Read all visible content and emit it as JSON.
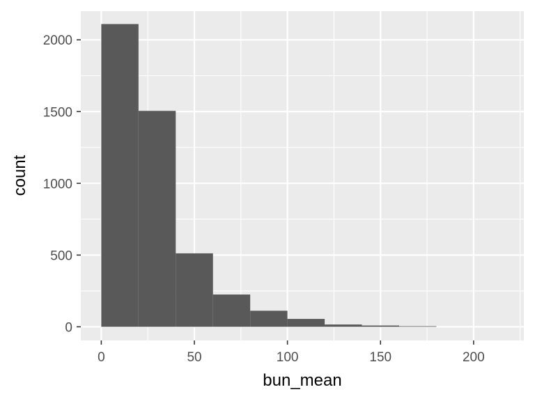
{
  "chart_data": {
    "type": "bar",
    "subtype": "histogram",
    "title": "",
    "xlabel": "bun_mean",
    "ylabel": "count",
    "bins": [
      {
        "start": 0,
        "end": 20,
        "count": 2110
      },
      {
        "start": 20,
        "end": 40,
        "count": 1505
      },
      {
        "start": 40,
        "end": 60,
        "count": 512
      },
      {
        "start": 60,
        "end": 80,
        "count": 225
      },
      {
        "start": 80,
        "end": 100,
        "count": 112
      },
      {
        "start": 100,
        "end": 120,
        "count": 55
      },
      {
        "start": 120,
        "end": 140,
        "count": 16
      },
      {
        "start": 140,
        "end": 160,
        "count": 9
      },
      {
        "start": 160,
        "end": 180,
        "count": 4
      },
      {
        "start": 180,
        "end": 200,
        "count": 0
      },
      {
        "start": 200,
        "end": 220,
        "count": 0
      }
    ],
    "xlim": [
      -11,
      227
    ],
    "ylim": [
      -95,
      2200
    ],
    "x_ticks": [
      0,
      50,
      100,
      150,
      200
    ],
    "x_tick_labels": [
      "0",
      "50",
      "100",
      "150",
      "200"
    ],
    "y_ticks": [
      0,
      500,
      1000,
      1500,
      2000
    ],
    "y_tick_labels": [
      "0",
      "500",
      "1000",
      "1500",
      "2000"
    ],
    "grid": true,
    "legend": "none",
    "colors": {
      "panel": "#ebebeb",
      "grid": "#ffffff",
      "bar": "#595959",
      "tick": "#333333",
      "tick_label": "#4d4d4d",
      "axis_title": "#000000"
    }
  }
}
